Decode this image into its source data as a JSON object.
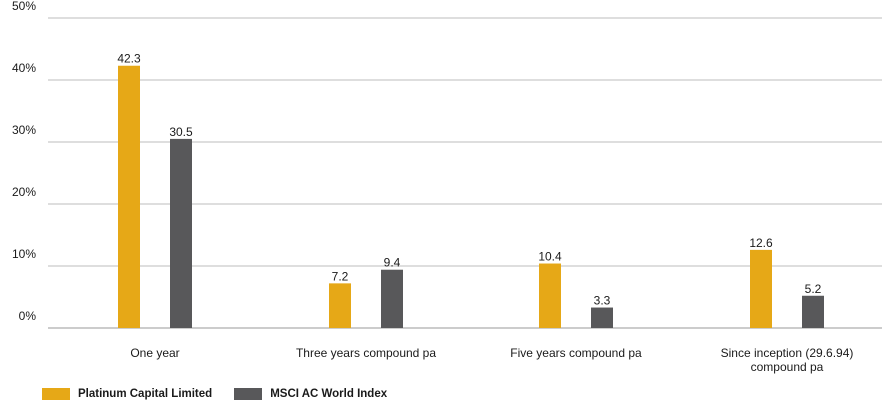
{
  "chart_data": {
    "type": "bar",
    "categories": [
      "One year",
      "Three years compound pa",
      "Five years compound pa",
      "Since inception (29.6.94) compound pa"
    ],
    "category_lines": [
      [
        "One year"
      ],
      [
        "Three years compound pa"
      ],
      [
        "Five years compound pa"
      ],
      [
        "Since inception (29.6.94)",
        "compound pa"
      ]
    ],
    "series": [
      {
        "name": "Platinum Capital Limited",
        "values": [
          42.3,
          7.2,
          10.4,
          12.6
        ],
        "color": "#e6a817"
      },
      {
        "name": "MSCI AC World Index",
        "values": [
          30.5,
          9.4,
          3.3,
          5.2
        ],
        "color": "#58585a"
      }
    ],
    "ylim": [
      0,
      50
    ],
    "yticks": [
      "0%",
      "10%",
      "20%",
      "30%",
      "40%",
      "50%"
    ],
    "grid": true,
    "legend_position": "bottom-left"
  }
}
